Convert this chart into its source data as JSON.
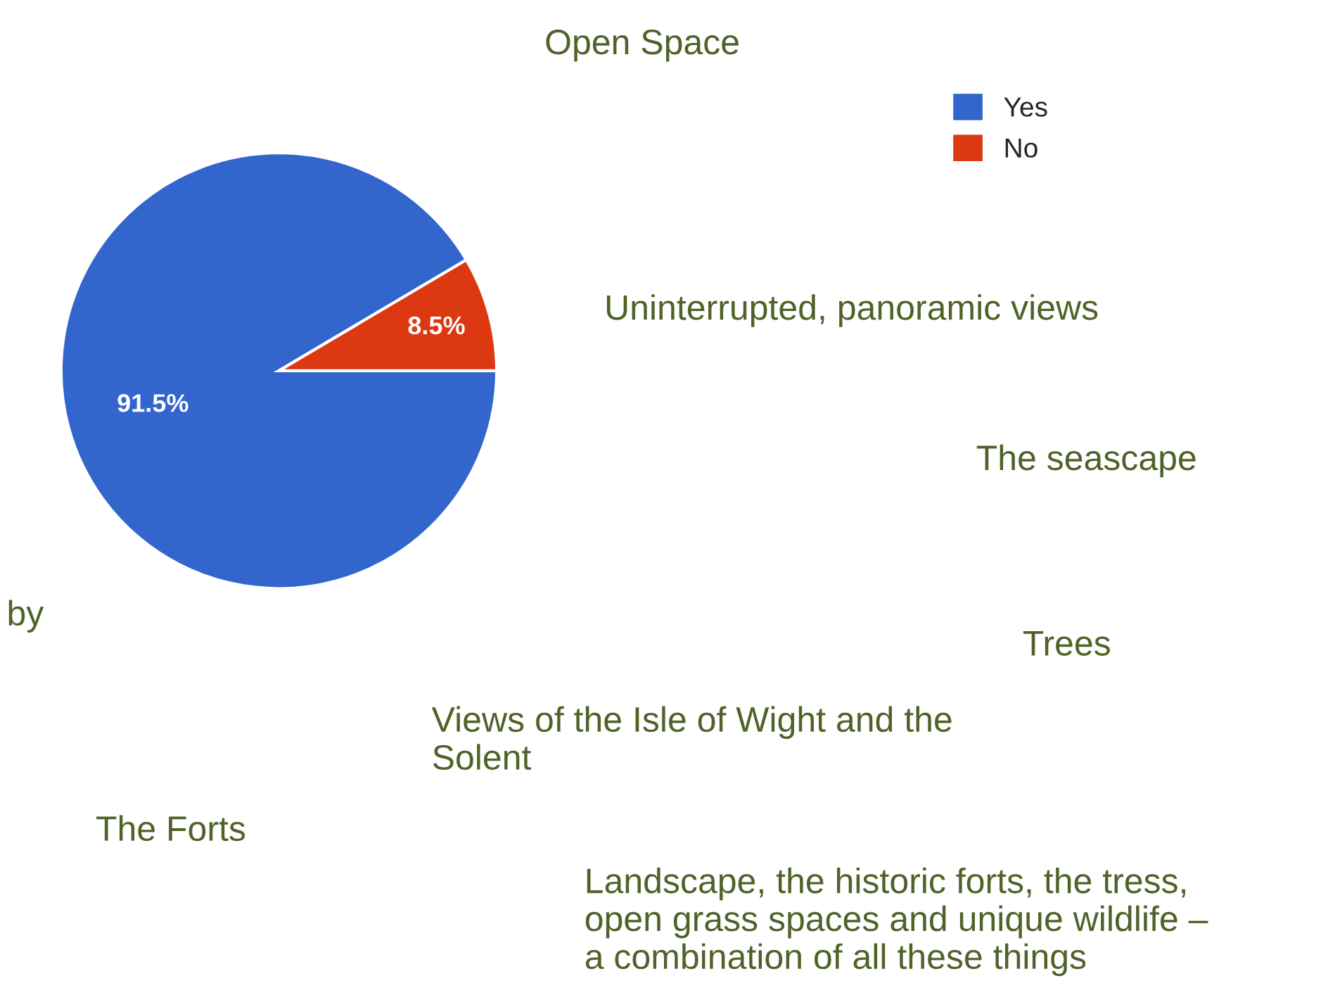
{
  "chart_data": {
    "type": "pie",
    "categories": [
      "Yes",
      "No"
    ],
    "values": [
      91.5,
      8.5
    ],
    "colors": [
      "#3366cc",
      "#dc3912"
    ],
    "value_labels": [
      "91.5%",
      "8.5%"
    ],
    "legend": "top right",
    "annotations": [
      "Open Space",
      "Uninterrupted, panoramic views",
      "The seascape",
      "by",
      "Trees",
      "Views of the Isle of Wight and the\nSolent",
      "The Forts",
      "Landscape, the historic forts, the tress,\nopen grass spaces and unique wildlife –\na combination of all these things"
    ]
  }
}
